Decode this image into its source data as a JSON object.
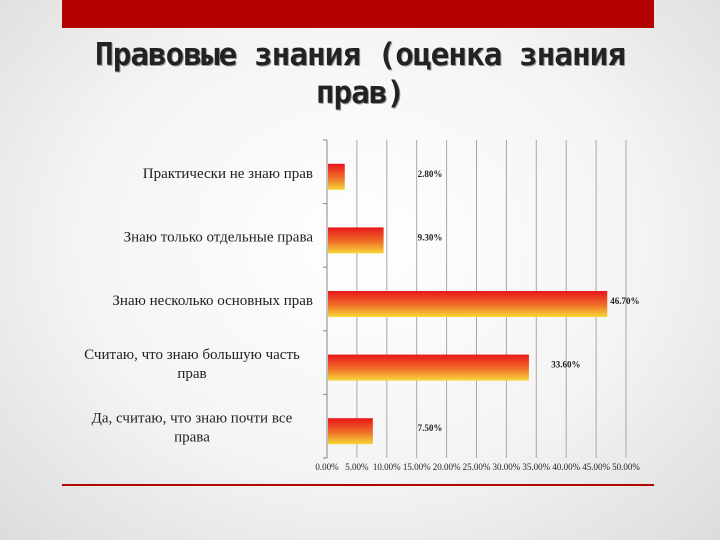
{
  "slide": {
    "title": "Правовые знания (оценка знания прав)",
    "accent_color": "#b30000"
  },
  "chart_data": {
    "type": "bar",
    "orientation": "horizontal",
    "categories": [
      "Практически не знаю прав",
      "Знаю только отдельные права",
      "Знаю несколько основных прав",
      "Считаю, что знаю большую часть прав",
      "Да, считаю, что знаю почти все права"
    ],
    "values": [
      2.8,
      9.3,
      46.7,
      33.6,
      7.5
    ],
    "value_labels": [
      "2.80%",
      "9.30%",
      "46.70%",
      "33.60%",
      "7.50%"
    ],
    "xlim": [
      0,
      50
    ],
    "xticks": [
      "0.00%",
      "5.00%",
      "10.00%",
      "15.00%",
      "20.00%",
      "25.00%",
      "30.00%",
      "35.00%",
      "40.00%",
      "45.00%",
      "50.00%"
    ],
    "gridlines": "vertical",
    "bar_gradient": [
      "#e8161b",
      "#f6d838"
    ],
    "title": "",
    "xlabel": "",
    "ylabel": ""
  }
}
